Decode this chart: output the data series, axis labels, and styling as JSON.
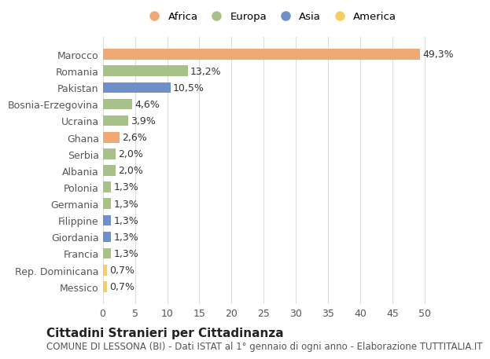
{
  "countries": [
    "Marocco",
    "Romania",
    "Pakistan",
    "Bosnia-Erzegovina",
    "Ucraina",
    "Ghana",
    "Serbia",
    "Albania",
    "Polonia",
    "Germania",
    "Filippine",
    "Giordania",
    "Francia",
    "Rep. Dominicana",
    "Messico"
  ],
  "values": [
    49.3,
    13.2,
    10.5,
    4.6,
    3.9,
    2.6,
    2.0,
    2.0,
    1.3,
    1.3,
    1.3,
    1.3,
    1.3,
    0.7,
    0.7
  ],
  "labels": [
    "49,3%",
    "13,2%",
    "10,5%",
    "4,6%",
    "3,9%",
    "2,6%",
    "2,0%",
    "2,0%",
    "1,3%",
    "1,3%",
    "1,3%",
    "1,3%",
    "1,3%",
    "0,7%",
    "0,7%"
  ],
  "continents": [
    "Africa",
    "Europa",
    "Asia",
    "Europa",
    "Europa",
    "Africa",
    "Europa",
    "Europa",
    "Europa",
    "Europa",
    "Asia",
    "Asia",
    "Europa",
    "America",
    "America"
  ],
  "continent_colors": {
    "Africa": "#F0A875",
    "Europa": "#A8C08A",
    "Asia": "#6E8FC9",
    "America": "#F5D060"
  },
  "legend_order": [
    "Africa",
    "Europa",
    "Asia",
    "America"
  ],
  "title": "Cittadini Stranieri per Cittadinanza",
  "subtitle": "COMUNE DI LESSONA (BI) - Dati ISTAT al 1° gennaio di ogni anno - Elaborazione TUTTITALIA.IT",
  "xlim": [
    0,
    52
  ],
  "xticks": [
    0,
    5,
    10,
    15,
    20,
    25,
    30,
    35,
    40,
    45,
    50
  ],
  "background_color": "#FFFFFF",
  "grid_color": "#DDDDDD",
  "bar_height": 0.65,
  "label_fontsize": 9,
  "tick_fontsize": 9,
  "title_fontsize": 11,
  "subtitle_fontsize": 8.5
}
